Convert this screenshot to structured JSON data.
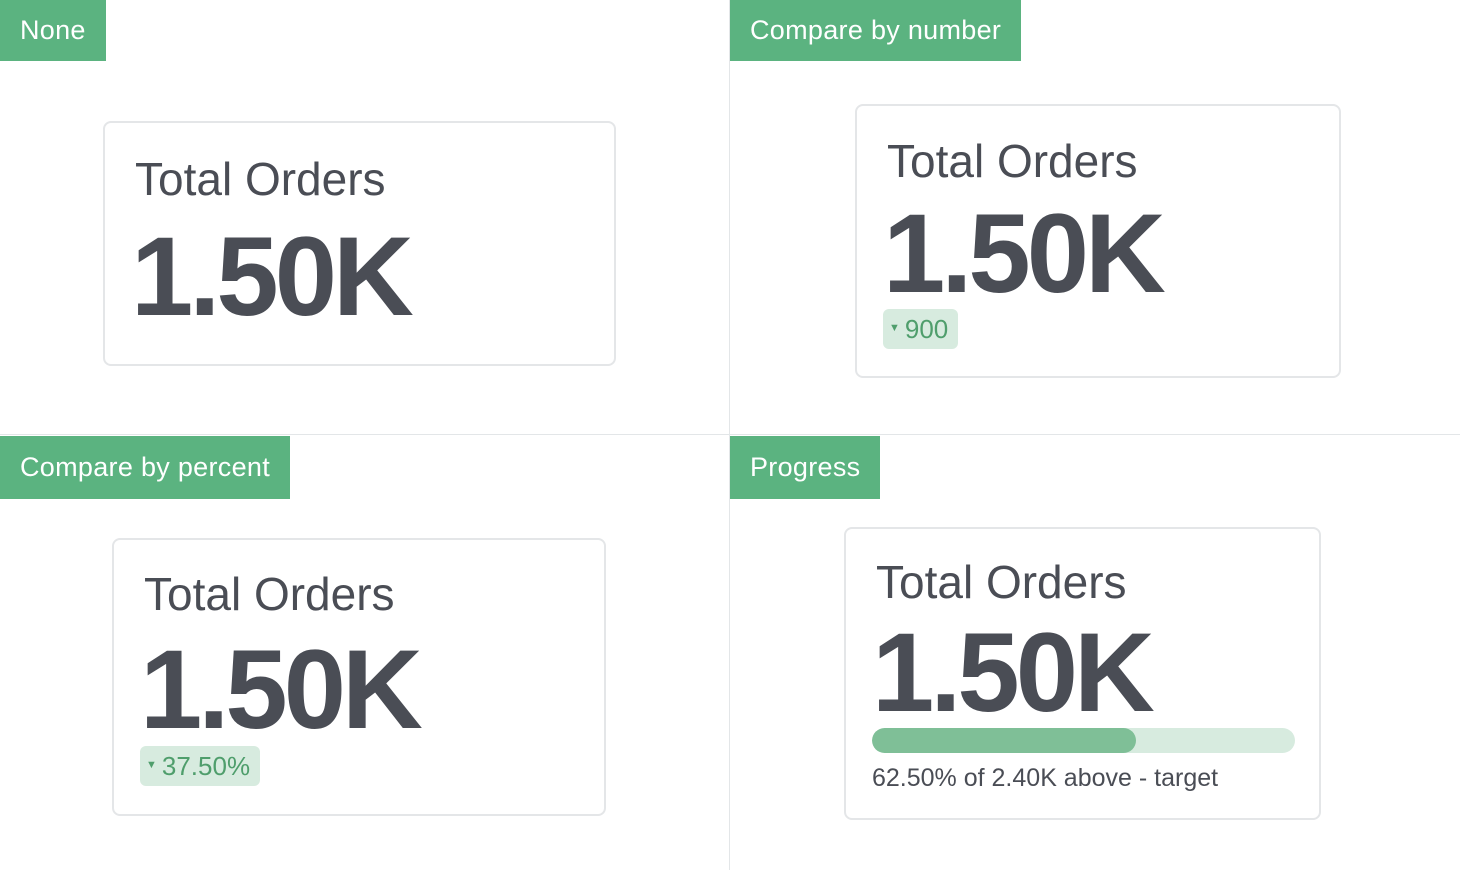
{
  "panels": [
    {
      "label": "None",
      "card": {
        "title": "Total Orders",
        "value": "1.50K"
      }
    },
    {
      "label": "Compare by number",
      "card": {
        "title": "Total Orders",
        "value": "1.50K",
        "comparison": "900",
        "comparison_icon": "caret-down-icon"
      }
    },
    {
      "label": "Compare by percent",
      "card": {
        "title": "Total Orders",
        "value": "1.50K",
        "comparison": "37.50%",
        "comparison_icon": "caret-down-icon"
      }
    },
    {
      "label": "Progress",
      "card": {
        "title": "Total Orders",
        "value": "1.50K",
        "progress_percent": 62.5,
        "progress_caption": "62.50% of 2.40K above - target"
      }
    }
  ],
  "colors": {
    "tag_background": "#5bb380",
    "text": "#4a4d55",
    "badge_background": "#d7ebdf",
    "badge_text": "#4f9e6c",
    "progress_fill": "#7fbf97",
    "progress_track": "#d7ebdf"
  }
}
